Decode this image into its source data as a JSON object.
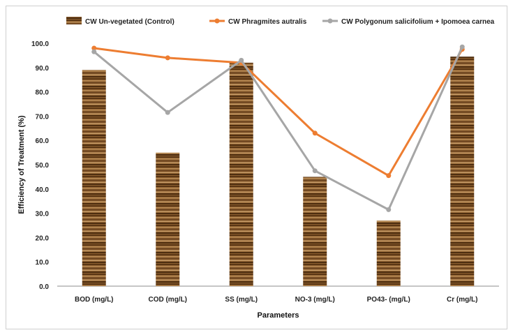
{
  "chart_data": {
    "type": "bar",
    "categories": [
      "BOD (mg/L)",
      "COD (mg/L)",
      "SS (mg/L)",
      "NO-3 (mg/L)",
      "PO43- (mg/L)",
      "Cr (mg/L)"
    ],
    "series": [
      {
        "name": "CW Un-vegetated (Control)",
        "type": "bar",
        "color": "#8a5a2b",
        "values": [
          89.0,
          55.0,
          92.0,
          45.0,
          27.0,
          94.5
        ]
      },
      {
        "name": "CW Phragmites autralis",
        "type": "line",
        "color": "#ed7d31",
        "values": [
          98.0,
          94.0,
          92.0,
          63.0,
          45.5,
          97.5
        ]
      },
      {
        "name": "CW Polygonum salicifolium + Ipomoea carnea",
        "type": "line",
        "color": "#a6a6a6",
        "values": [
          96.5,
          71.5,
          93.0,
          47.5,
          31.5,
          98.5
        ]
      }
    ],
    "xlabel": "Parameters",
    "ylabel": "Efficiency of Treatment (%)",
    "ylim": [
      0,
      100
    ],
    "yticks": [
      "0.0",
      "10.0",
      "20.0",
      "30.0",
      "40.0",
      "50.0",
      "60.0",
      "70.0",
      "80.0",
      "90.0",
      "100.0"
    ],
    "legend_position": "top",
    "grid": false
  }
}
